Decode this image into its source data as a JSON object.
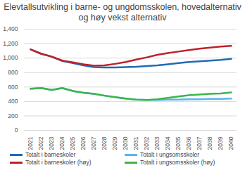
{
  "chart_data": {
    "type": "line",
    "title": "Elevtallsutvikling i barne- og ungdomsskolen, hovedalternativ og høy vekst alternativ",
    "categories": [
      "2021",
      "2022",
      "2023",
      "2024",
      "2025",
      "2026",
      "2027",
      "2028",
      "2029",
      "2030",
      "2031",
      "2032",
      "2033",
      "2034",
      "2035",
      "2036",
      "2037",
      "2038",
      "2039",
      "2040"
    ],
    "series": [
      {
        "name": "Totalt i barneskoler",
        "color": "#1f6bb5",
        "values": [
          1120,
          1060,
          1020,
          960,
          930,
          900,
          875,
          870,
          870,
          875,
          880,
          890,
          900,
          915,
          930,
          945,
          955,
          965,
          975,
          990
        ]
      },
      {
        "name": "Totalt i ungsomsskoler",
        "color": "#5bb6e8",
        "values": [
          575,
          585,
          560,
          585,
          545,
          520,
          505,
          480,
          460,
          440,
          425,
          420,
          420,
          425,
          425,
          430,
          430,
          435,
          435,
          440
        ]
      },
      {
        "name": "Totalt i barneskoler (høy)",
        "color": "#c0202a",
        "values": [
          1120,
          1060,
          1020,
          965,
          940,
          915,
          895,
          900,
          920,
          945,
          980,
          1010,
          1045,
          1070,
          1090,
          1110,
          1130,
          1145,
          1160,
          1170
        ]
      },
      {
        "name": "Totalt i ungsomsskoler (høy)",
        "color": "#3cb54a",
        "values": [
          575,
          585,
          560,
          585,
          545,
          520,
          505,
          480,
          460,
          440,
          425,
          420,
          430,
          450,
          470,
          485,
          495,
          505,
          510,
          525
        ]
      }
    ],
    "ylim": [
      0,
      1400
    ],
    "yticks": [
      0,
      200,
      400,
      600,
      800,
      1000,
      1200,
      1400
    ],
    "grid": true,
    "legend": "bottom"
  }
}
